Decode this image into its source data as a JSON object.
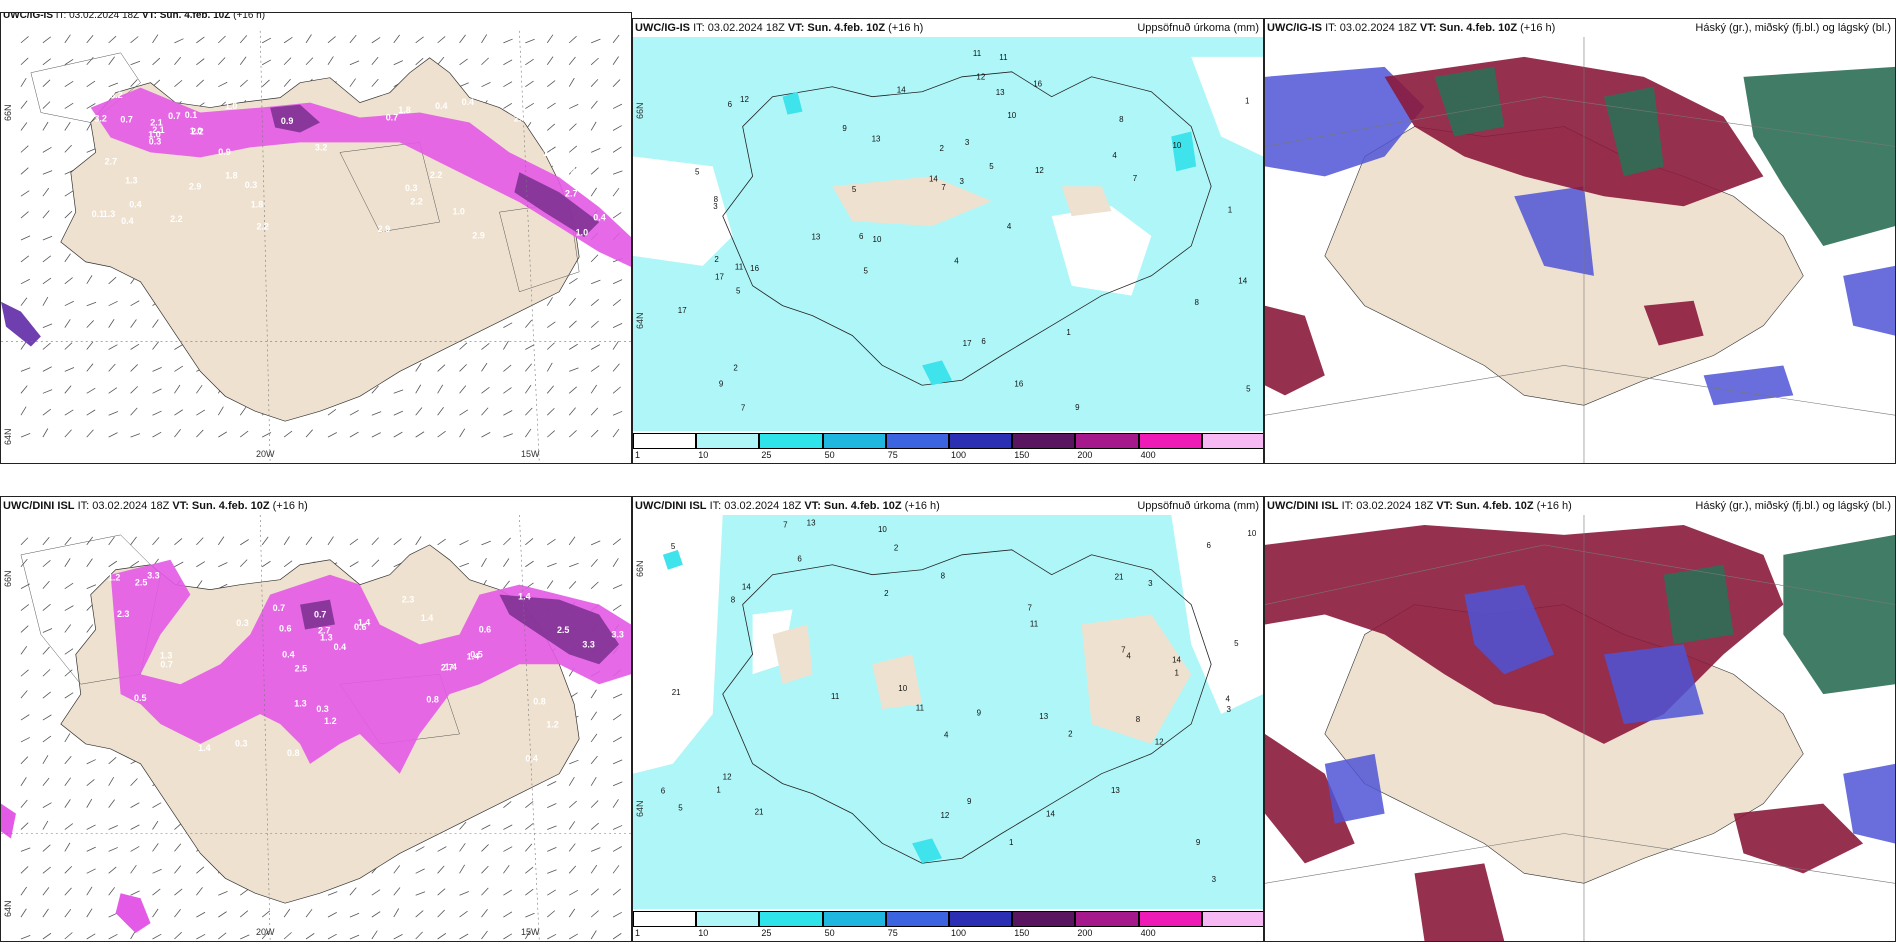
{
  "colors": {
    "land": "#efe1cf",
    "sea": "#ffffff",
    "cyan_light": "#aff6f8",
    "cyan": "#3fe3ec",
    "magenta": "#e35ae6",
    "purple": "#7a2f8e",
    "maroon": "#8b1a3c",
    "blue": "#4f55d6",
    "green": "#2c6f55"
  },
  "rows": [
    {
      "model": "UWC/IG-IS",
      "panels": [
        {
          "id": "wind",
          "model": "UWC/IG-IS",
          "it": "IT: 03.02.2024 18Z",
          "vt": "VT: Sun. 4.feb. 10Z",
          "lead": "(+16 h)",
          "right": "",
          "numbers": [
            "2.1",
            "2.2",
            "2.9",
            "1.0",
            "1.3",
            "1.8",
            "2.2",
            "3.2",
            "0.9",
            "0.3",
            "0.4",
            "0.7",
            "1.0",
            "2.7",
            "0.4",
            "0.1"
          ],
          "lon": [
            "20W",
            "15W"
          ],
          "lat": [
            "66N",
            "64N"
          ]
        },
        {
          "id": "precip",
          "model": "UWC/IG-IS",
          "it": "IT: 03.02.2024 18Z",
          "vt": "VT: Sun. 4.feb. 10Z",
          "lead": "(+16 h)",
          "right": "Uppsöfnuð úrkoma (mm)",
          "numbers": [
            "7",
            "5",
            "6",
            "8",
            "14",
            "13",
            "5",
            "4",
            "3",
            "2",
            "1",
            "10",
            "12",
            "9",
            "11",
            "17",
            "16"
          ],
          "lat": [
            "66N",
            "64N"
          ]
        },
        {
          "id": "cloud",
          "model": "UWC/IG-IS",
          "it": "IT: 03.02.2024 18Z",
          "vt": "VT: Sun. 4.feb. 10Z",
          "lead": "(+16 h)",
          "right": "Háský (gr.), miðský (fj.bl.) og lágský (bl.)"
        }
      ]
    },
    {
      "model": "UWC/DINI ISL",
      "panels": [
        {
          "id": "wind",
          "model": "UWC/DINI ISL",
          "it": "IT: 03.02.2024 18Z",
          "vt": "VT: Sun. 4.feb. 10Z",
          "lead": "(+16 h)",
          "right": "",
          "numbers": [
            "2.3",
            "1.4",
            "0.6",
            "0.5",
            "0.8",
            "1.3",
            "1.2",
            "3.3",
            "2.7",
            "2.5",
            "0.3",
            "0.7",
            "1.4",
            "0.4"
          ],
          "lon": [
            "20W",
            "15W"
          ],
          "lat": [
            "66N",
            "64N"
          ]
        },
        {
          "id": "precip",
          "model": "UWC/DINI ISL",
          "it": "IT: 03.02.2024 18Z",
          "vt": "VT: Sun. 4.feb. 10Z",
          "lead": "(+16 h)",
          "right": "Uppsöfnuð úrkoma (mm)",
          "numbers": [
            "12",
            "10",
            "8",
            "11",
            "7",
            "6",
            "5",
            "4",
            "3",
            "2",
            "1",
            "9",
            "13",
            "14",
            "21"
          ],
          "lat": [
            "66N",
            "64N"
          ]
        },
        {
          "id": "cloud",
          "model": "UWC/DINI ISL",
          "it": "IT: 03.02.2024 18Z",
          "vt": "VT: Sun. 4.feb. 10Z",
          "lead": "(+16 h)",
          "right": "Háský (gr.), miðský (fj.bl.) og lágský (bl.)"
        }
      ]
    }
  ],
  "colorbar": {
    "ticks": [
      "1",
      "10",
      "25",
      "50",
      "75",
      "100",
      "150",
      "200",
      "400"
    ],
    "colors": [
      "#ffffff",
      "#aff6f8",
      "#2fe3ea",
      "#1fb7e0",
      "#3c63e0",
      "#2b2fb4",
      "#5a1560",
      "#a5198c",
      "#ee1bb6",
      "#f6b9f4"
    ]
  }
}
